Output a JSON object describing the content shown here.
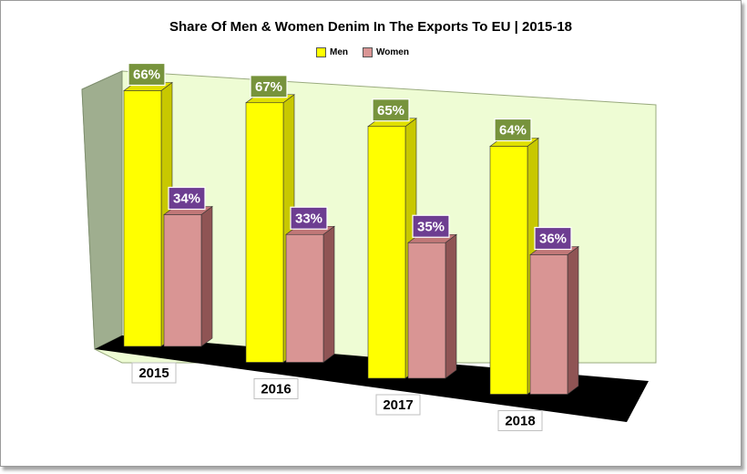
{
  "colors": {
    "men_front": "#ffff00",
    "men_side": "#c8c800",
    "men_top": "#e0e000",
    "women_front": "#d99594",
    "women_side": "#8f5454",
    "women_top": "#c07777",
    "label_men_bg": "#77933c",
    "label_women_bg": "#6d3d91",
    "back_wall": "#eefcd4",
    "side_wall": "#9fae8f",
    "floor": "#000000"
  },
  "chart_data": {
    "type": "bar",
    "title": "Share Of Men & Women Denim In The Exports To EU | 2015-18",
    "categories": [
      "2015",
      "2016",
      "2017",
      "2018"
    ],
    "series": [
      {
        "name": "Men",
        "values": [
          66,
          67,
          65,
          64
        ],
        "labels": [
          "66%",
          "67%",
          "65%",
          "64%"
        ]
      },
      {
        "name": "Women",
        "values": [
          34,
          33,
          35,
          36
        ],
        "labels": [
          "34%",
          "33%",
          "35%",
          "36%"
        ]
      }
    ],
    "ylim": [
      0,
      70
    ],
    "xlabel": "",
    "ylabel": "",
    "legend": "top-center"
  }
}
